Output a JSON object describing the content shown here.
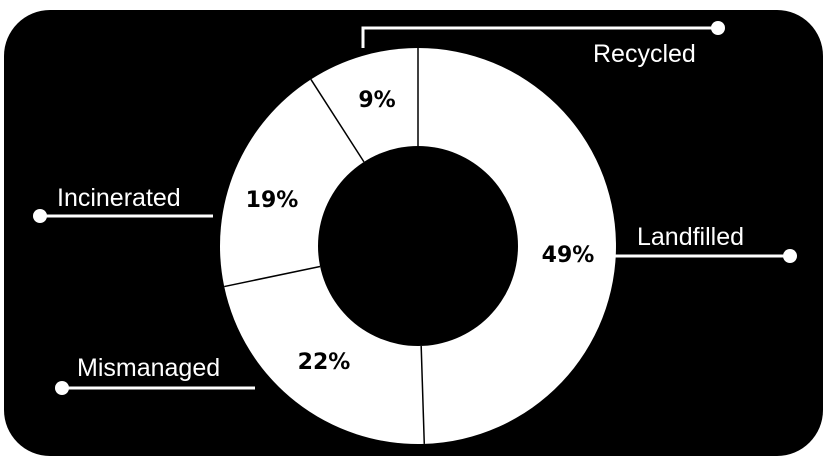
{
  "colors": {
    "background": "#000000",
    "ring": "#ffffff",
    "divider": "#000000",
    "leader": "#ffffff"
  },
  "chart_data": {
    "type": "pie",
    "variant": "donut",
    "title": "",
    "start_angle_deg": 0,
    "direction": "clockwise",
    "slices": [
      {
        "label": "Landfilled",
        "value": 49,
        "value_label": "49%"
      },
      {
        "label": "Mismanaged",
        "value": 22,
        "value_label": "22%"
      },
      {
        "label": "Incinerated",
        "value": 19,
        "value_label": "19%"
      },
      {
        "label": "Recycled",
        "value": 9,
        "value_label": "9%"
      }
    ],
    "legend": "none (categories labeled with leader lines)"
  }
}
